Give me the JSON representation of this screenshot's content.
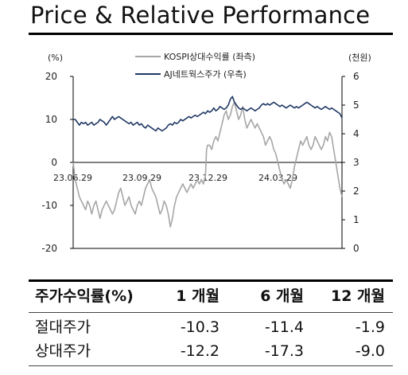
{
  "title": "Price & Relative Performance",
  "chart_data": {
    "type": "line",
    "left_axis": {
      "unit": "(%)",
      "ticks": [
        20,
        10,
        0,
        -10,
        -20
      ],
      "range": [
        -20,
        20
      ]
    },
    "right_axis": {
      "unit": "(천원)",
      "ticks": [
        6,
        5,
        4,
        3,
        2,
        1,
        0
      ],
      "range": [
        0,
        6
      ]
    },
    "x_ticks": [
      "23.06.29",
      "23.09.29",
      "23.12.29",
      "24.03.29"
    ],
    "legend": [
      "KOSPI상대수익률 (좌측)",
      "AJ네트웍스주가 (우측)"
    ],
    "colors": {
      "relative": "#a6a6a6",
      "price": "#1f3864",
      "zero_line": "#000000"
    },
    "series": [
      {
        "name": "KOSPI상대수익률 (좌측)",
        "axis": "left",
        "points": [
          [
            0,
            0
          ],
          [
            0.5,
            -2
          ],
          [
            1,
            -4
          ],
          [
            2,
            -6
          ],
          [
            3,
            -8
          ],
          [
            4,
            -9
          ],
          [
            5,
            -10
          ],
          [
            6,
            -11
          ],
          [
            7,
            -9
          ],
          [
            8,
            -10
          ],
          [
            9,
            -12
          ],
          [
            10,
            -10
          ],
          [
            11,
            -9
          ],
          [
            12,
            -11
          ],
          [
            13,
            -13
          ],
          [
            14,
            -11
          ],
          [
            15,
            -10
          ],
          [
            16,
            -9
          ],
          [
            17,
            -10
          ],
          [
            18,
            -11
          ],
          [
            19,
            -12
          ],
          [
            20,
            -11
          ],
          [
            21,
            -9
          ],
          [
            22,
            -7
          ],
          [
            23,
            -6
          ],
          [
            24,
            -8
          ],
          [
            25,
            -10
          ],
          [
            26,
            -9
          ],
          [
            27,
            -8
          ],
          [
            28,
            -10
          ],
          [
            29,
            -11
          ],
          [
            30,
            -12
          ],
          [
            31,
            -10
          ],
          [
            32,
            -9
          ],
          [
            33,
            -10
          ],
          [
            34,
            -8
          ],
          [
            35,
            -6
          ],
          [
            36,
            -5
          ],
          [
            37,
            -4
          ],
          [
            38,
            -6
          ],
          [
            39,
            -7
          ],
          [
            40,
            -8
          ],
          [
            41,
            -10
          ],
          [
            42,
            -12
          ],
          [
            43,
            -11
          ],
          [
            44,
            -9
          ],
          [
            45,
            -10
          ],
          [
            46,
            -12
          ],
          [
            47,
            -15
          ],
          [
            48,
            -13
          ],
          [
            49,
            -10
          ],
          [
            50,
            -8
          ],
          [
            51,
            -7
          ],
          [
            52,
            -6
          ],
          [
            53,
            -5
          ],
          [
            54,
            -6
          ],
          [
            55,
            -7
          ],
          [
            56,
            -6
          ],
          [
            57,
            -5
          ],
          [
            58,
            -6
          ],
          [
            59,
            -5
          ],
          [
            60,
            -4
          ],
          [
            61,
            -5
          ],
          [
            62,
            -4
          ],
          [
            63,
            -5
          ],
          [
            64,
            -3
          ],
          [
            64.5,
            3
          ],
          [
            65,
            4
          ],
          [
            66,
            4
          ],
          [
            67,
            3
          ],
          [
            68,
            5
          ],
          [
            69,
            6
          ],
          [
            70,
            5
          ],
          [
            71,
            7
          ],
          [
            72,
            9
          ],
          [
            73,
            11
          ],
          [
            74,
            12
          ],
          [
            75,
            10
          ],
          [
            76,
            11
          ],
          [
            77,
            13
          ],
          [
            78,
            14
          ],
          [
            79,
            12
          ],
          [
            80,
            10
          ],
          [
            81,
            11
          ],
          [
            82,
            13
          ],
          [
            83,
            10
          ],
          [
            84,
            8
          ],
          [
            85,
            9
          ],
          [
            86,
            10
          ],
          [
            87,
            9
          ],
          [
            88,
            8
          ],
          [
            89,
            9
          ],
          [
            90,
            8
          ],
          [
            91,
            7
          ],
          [
            92,
            6
          ],
          [
            93,
            4
          ],
          [
            94,
            5
          ],
          [
            95,
            6
          ],
          [
            96,
            5
          ],
          [
            97,
            3
          ],
          [
            98,
            2
          ],
          [
            99,
            0
          ],
          [
            100,
            -2
          ],
          [
            101,
            -4
          ],
          [
            102,
            -5
          ],
          [
            103,
            -4
          ],
          [
            104,
            -5
          ],
          [
            105,
            -6
          ],
          [
            106,
            -4
          ],
          [
            107,
            -1
          ],
          [
            108,
            1
          ],
          [
            109,
            3
          ],
          [
            110,
            5
          ],
          [
            111,
            4
          ],
          [
            112,
            5
          ],
          [
            113,
            6
          ],
          [
            114,
            4
          ],
          [
            115,
            3
          ],
          [
            116,
            4
          ],
          [
            117,
            6
          ],
          [
            118,
            5
          ],
          [
            119,
            4
          ],
          [
            120,
            3
          ],
          [
            121,
            4
          ],
          [
            122,
            6
          ],
          [
            123,
            5
          ],
          [
            124,
            7
          ],
          [
            125,
            6
          ],
          [
            126,
            3
          ],
          [
            127,
            0
          ],
          [
            128,
            -3
          ],
          [
            129,
            -6
          ],
          [
            130,
            -8
          ]
        ]
      },
      {
        "name": "AJ네트웍스주가 (우측)",
        "axis": "right",
        "points": [
          [
            0,
            4.5
          ],
          [
            1,
            4.5
          ],
          [
            2,
            4.4
          ],
          [
            3,
            4.3
          ],
          [
            4,
            4.4
          ],
          [
            5,
            4.35
          ],
          [
            6,
            4.4
          ],
          [
            7,
            4.3
          ],
          [
            8,
            4.35
          ],
          [
            9,
            4.4
          ],
          [
            10,
            4.3
          ],
          [
            11,
            4.35
          ],
          [
            12,
            4.4
          ],
          [
            13,
            4.5
          ],
          [
            14,
            4.45
          ],
          [
            15,
            4.4
          ],
          [
            16,
            4.3
          ],
          [
            17,
            4.4
          ],
          [
            18,
            4.5
          ],
          [
            19,
            4.6
          ],
          [
            20,
            4.5
          ],
          [
            21,
            4.55
          ],
          [
            22,
            4.6
          ],
          [
            23,
            4.55
          ],
          [
            24,
            4.5
          ],
          [
            25,
            4.45
          ],
          [
            26,
            4.4
          ],
          [
            27,
            4.35
          ],
          [
            28,
            4.4
          ],
          [
            29,
            4.3
          ],
          [
            30,
            4.35
          ],
          [
            31,
            4.4
          ],
          [
            32,
            4.3
          ],
          [
            33,
            4.35
          ],
          [
            34,
            4.25
          ],
          [
            35,
            4.2
          ],
          [
            36,
            4.3
          ],
          [
            37,
            4.25
          ],
          [
            38,
            4.2
          ],
          [
            39,
            4.15
          ],
          [
            40,
            4.1
          ],
          [
            41,
            4.2
          ],
          [
            42,
            4.15
          ],
          [
            43,
            4.1
          ],
          [
            44,
            4.15
          ],
          [
            45,
            4.2
          ],
          [
            46,
            4.3
          ],
          [
            47,
            4.35
          ],
          [
            48,
            4.3
          ],
          [
            49,
            4.4
          ],
          [
            50,
            4.35
          ],
          [
            51,
            4.4
          ],
          [
            52,
            4.5
          ],
          [
            53,
            4.45
          ],
          [
            54,
            4.5
          ],
          [
            55,
            4.55
          ],
          [
            56,
            4.6
          ],
          [
            57,
            4.55
          ],
          [
            58,
            4.6
          ],
          [
            59,
            4.65
          ],
          [
            60,
            4.6
          ],
          [
            61,
            4.65
          ],
          [
            62,
            4.7
          ],
          [
            63,
            4.75
          ],
          [
            64,
            4.7
          ],
          [
            65,
            4.8
          ],
          [
            66,
            4.75
          ],
          [
            67,
            4.8
          ],
          [
            68,
            4.9
          ],
          [
            69,
            4.8
          ],
          [
            70,
            4.85
          ],
          [
            71,
            4.95
          ],
          [
            72,
            4.9
          ],
          [
            73,
            4.85
          ],
          [
            74,
            4.9
          ],
          [
            75,
            5.0
          ],
          [
            76,
            5.2
          ],
          [
            77,
            5.3
          ],
          [
            78,
            5.1
          ],
          [
            79,
            5.0
          ],
          [
            80,
            4.9
          ],
          [
            81,
            4.85
          ],
          [
            82,
            4.9
          ],
          [
            83,
            4.85
          ],
          [
            84,
            4.8
          ],
          [
            85,
            4.85
          ],
          [
            86,
            4.9
          ],
          [
            87,
            4.85
          ],
          [
            88,
            4.8
          ],
          [
            89,
            4.85
          ],
          [
            90,
            4.9
          ],
          [
            91,
            5.0
          ],
          [
            92,
            5.05
          ],
          [
            93,
            5.0
          ],
          [
            94,
            5.05
          ],
          [
            95,
            5.0
          ],
          [
            96,
            5.05
          ],
          [
            97,
            5.1
          ],
          [
            98,
            5.05
          ],
          [
            99,
            5.0
          ],
          [
            100,
            4.95
          ],
          [
            101,
            5.0
          ],
          [
            102,
            4.95
          ],
          [
            103,
            4.9
          ],
          [
            104,
            4.95
          ],
          [
            105,
            5.0
          ],
          [
            106,
            4.95
          ],
          [
            107,
            4.9
          ],
          [
            108,
            4.95
          ],
          [
            109,
            4.9
          ],
          [
            110,
            4.95
          ],
          [
            111,
            5.0
          ],
          [
            112,
            5.05
          ],
          [
            113,
            5.1
          ],
          [
            114,
            5.05
          ],
          [
            115,
            5.0
          ],
          [
            116,
            4.95
          ],
          [
            117,
            4.9
          ],
          [
            118,
            4.95
          ],
          [
            119,
            4.9
          ],
          [
            120,
            4.85
          ],
          [
            121,
            4.9
          ],
          [
            122,
            4.95
          ],
          [
            123,
            4.9
          ],
          [
            124,
            4.85
          ],
          [
            125,
            4.9
          ],
          [
            126,
            4.85
          ],
          [
            127,
            4.8
          ],
          [
            128,
            4.75
          ],
          [
            129,
            4.7
          ],
          [
            130,
            4.55
          ]
        ]
      }
    ]
  },
  "table": {
    "headers": [
      "주가수익률(%)",
      "1 개월",
      "6 개월",
      "12 개월"
    ],
    "rows": [
      {
        "label": "절대주가",
        "values": [
          "-10.3",
          "-11.4",
          "-1.9"
        ]
      },
      {
        "label": "상대주가",
        "values": [
          "-12.2",
          "-17.3",
          "-9.0"
        ]
      }
    ]
  }
}
